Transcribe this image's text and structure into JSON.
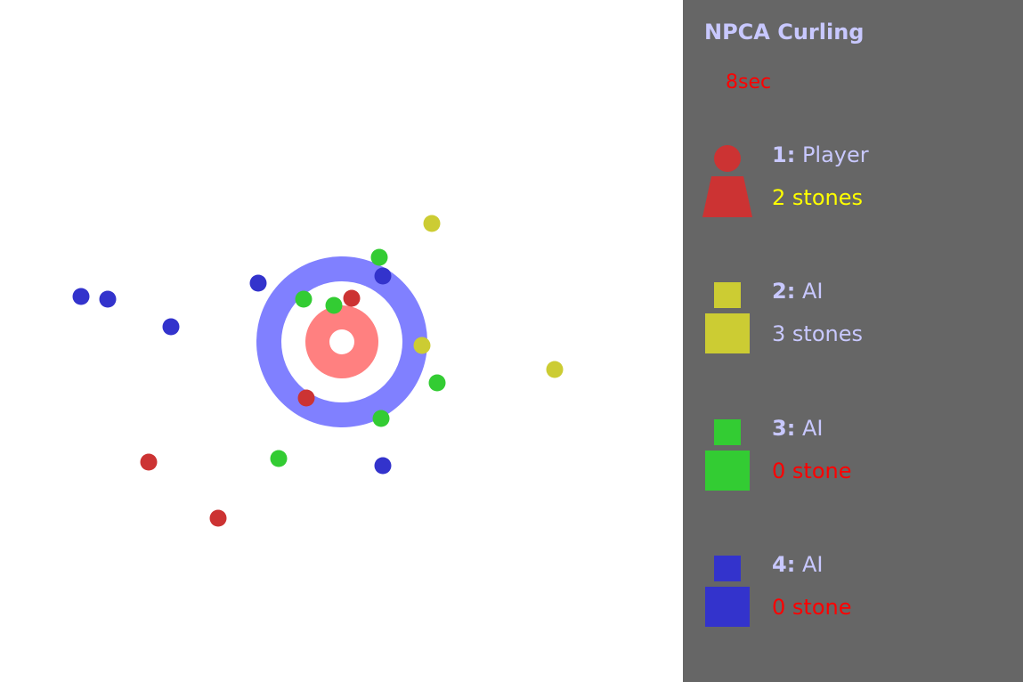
{
  "app_title": "NPCA Curling",
  "timer": "8sec",
  "colors": {
    "red": "#cc3333",
    "yellow": "#cccc33",
    "green": "#33cc33",
    "blue": "#3333cc",
    "ring_outer": "#8080ff",
    "button": "#ff8080",
    "panel_bg": "#666666",
    "label": "#c8c8ff"
  },
  "players": [
    {
      "num": "1:",
      "name": "Player",
      "stones": "2 stones",
      "stones_color": "#ffff00",
      "icon": "person-icon",
      "color": "#cc3333"
    },
    {
      "num": "2:",
      "name": "AI",
      "stones": "3 stones",
      "stones_color": "#c8c8ff",
      "icon": "robot-icon",
      "color": "#cccc33"
    },
    {
      "num": "3:",
      "name": "AI",
      "stones": "0 stone",
      "stones_color": "#ff0000",
      "icon": "robot-icon",
      "color": "#33cc33"
    },
    {
      "num": "4:",
      "name": "AI",
      "stones": "0 stone",
      "stones_color": "#ff0000",
      "icon": "robot-icon",
      "color": "#3333cc"
    }
  ],
  "field_stones": [
    {
      "team": "yellow"
    },
    {
      "team": "green"
    },
    {
      "team": "blue"
    },
    {
      "team": "blue"
    },
    {
      "team": "green"
    },
    {
      "team": "green"
    },
    {
      "team": "red"
    },
    {
      "team": "blue"
    },
    {
      "team": "blue"
    },
    {
      "team": "blue"
    },
    {
      "team": "yellow"
    },
    {
      "team": "yellow"
    },
    {
      "team": "green"
    },
    {
      "team": "red"
    },
    {
      "team": "green"
    },
    {
      "team": "red"
    },
    {
      "team": "green"
    },
    {
      "team": "blue"
    },
    {
      "team": "red"
    }
  ]
}
